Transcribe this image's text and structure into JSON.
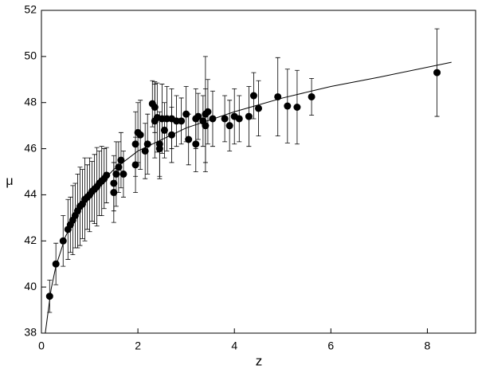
{
  "chart_data": {
    "type": "scatter",
    "x_label": "z",
    "y_label": "μ",
    "xlim": [
      0,
      9
    ],
    "ylim": [
      38,
      52
    ],
    "xticks": [
      0,
      2,
      4,
      6,
      8
    ],
    "yticks": [
      38,
      40,
      42,
      44,
      46,
      48,
      50,
      52
    ],
    "color": "#000000",
    "x": [
      0.17,
      0.3,
      0.45,
      0.55,
      0.6,
      0.65,
      0.7,
      0.75,
      0.8,
      0.85,
      0.9,
      0.95,
      1.0,
      1.05,
      1.1,
      1.15,
      1.2,
      1.25,
      1.3,
      1.35,
      1.5,
      1.5,
      1.55,
      1.6,
      1.65,
      1.7,
      1.95,
      1.95,
      2.0,
      2.05,
      2.15,
      2.2,
      2.3,
      2.35,
      2.35,
      2.4,
      2.45,
      2.45,
      2.5,
      2.55,
      2.6,
      2.7,
      2.7,
      2.8,
      2.9,
      3.0,
      3.05,
      3.2,
      3.2,
      3.25,
      3.35,
      3.4,
      3.4,
      3.45,
      3.55,
      3.8,
      3.9,
      4.0,
      4.1,
      4.3,
      4.4,
      4.5,
      4.9,
      5.1,
      5.3,
      5.6,
      8.2
    ],
    "values": [
      39.6,
      41.0,
      42.0,
      42.5,
      42.7,
      42.9,
      43.1,
      43.3,
      43.5,
      43.6,
      43.8,
      43.9,
      44.0,
      44.15,
      44.25,
      44.35,
      44.5,
      44.6,
      44.7,
      44.85,
      44.1,
      44.5,
      44.9,
      45.2,
      45.5,
      44.9,
      45.3,
      46.2,
      46.7,
      46.6,
      45.9,
      46.2,
      47.95,
      47.8,
      47.2,
      47.35,
      46.0,
      46.2,
      47.3,
      46.8,
      47.3,
      47.3,
      46.6,
      47.2,
      47.2,
      47.5,
      46.4,
      47.3,
      46.2,
      47.4,
      47.2,
      47.5,
      47.0,
      47.6,
      47.3,
      47.3,
      47.0,
      47.4,
      47.3,
      47.4,
      48.3,
      47.75,
      48.25,
      47.85,
      47.8,
      48.25,
      49.3
    ],
    "errors": [
      0.7,
      0.9,
      1.1,
      1.3,
      1.2,
      1.5,
      1.4,
      1.6,
      1.7,
      1.5,
      1.8,
      1.4,
      1.6,
      1.3,
      1.5,
      1.7,
      1.4,
      1.5,
      1.3,
      1.2,
      1.3,
      1.2,
      1.4,
      1.1,
      1.2,
      1.0,
      1.2,
      1.4,
      1.3,
      1.5,
      1.2,
      1.3,
      1.0,
      1.1,
      1.6,
      1.5,
      1.3,
      1.4,
      1.5,
      1.2,
      1.4,
      1.3,
      1.2,
      1.1,
      1.0,
      1.2,
      1.1,
      1.3,
      1.2,
      1.0,
      1.1,
      2.5,
      1.6,
      1.4,
      1.2,
      1.0,
      1.1,
      1.2,
      1.0,
      1.3,
      1.0,
      1.2,
      1.7,
      1.6,
      1.6,
      0.8,
      1.9
    ],
    "fit": {
      "x": [
        0.08,
        0.2,
        0.3,
        0.5,
        0.75,
        1.0,
        1.5,
        2.0,
        3.0,
        4.0,
        5.0,
        6.0,
        7.0,
        8.5
      ],
      "values": [
        38.0,
        39.9,
        40.9,
        42.2,
        43.2,
        44.0,
        45.1,
        45.9,
        46.9,
        47.6,
        48.2,
        48.7,
        49.1,
        49.75
      ]
    }
  }
}
